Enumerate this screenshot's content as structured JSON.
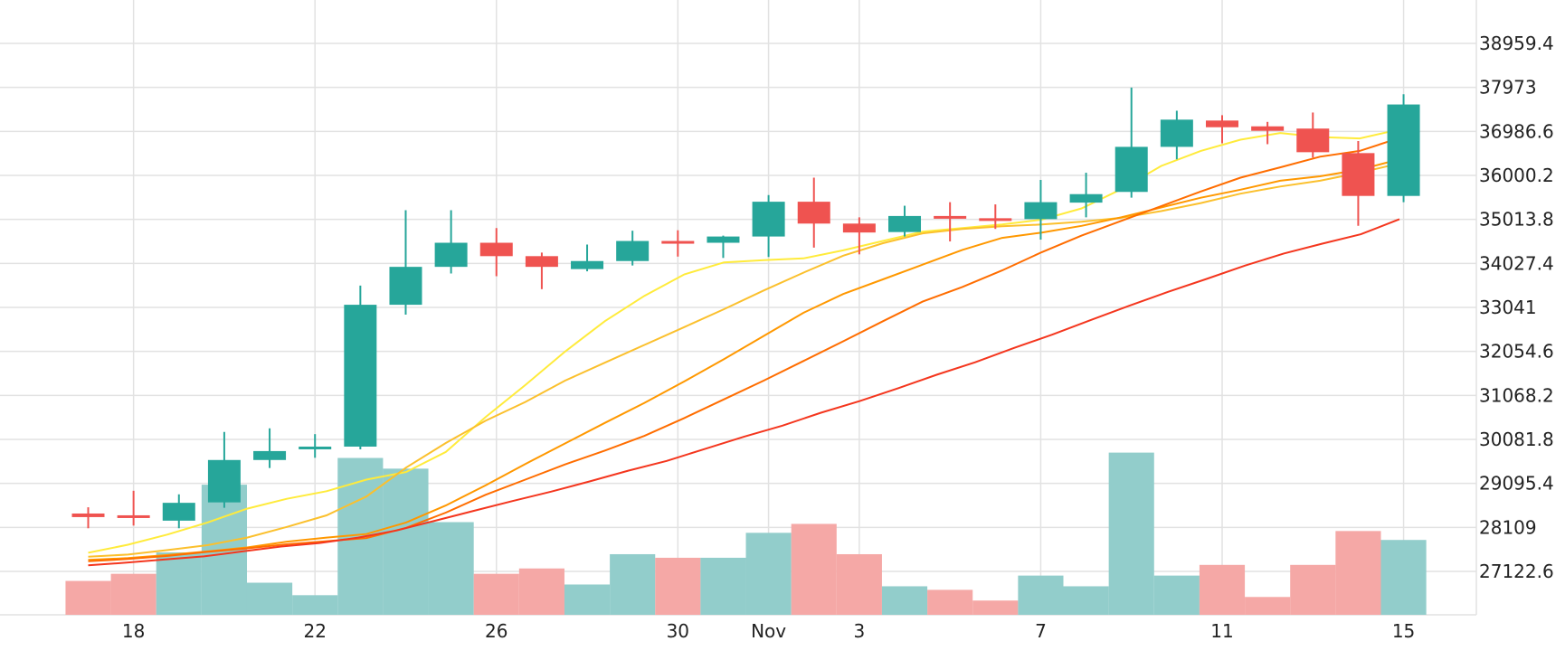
{
  "chart_data": {
    "type": "candlestick",
    "x_labels": [
      "18",
      "22",
      "26",
      "30",
      "Nov",
      "3",
      "7",
      "11",
      "15"
    ],
    "x_label_index": [
      1,
      5,
      9,
      13,
      15,
      17,
      21,
      25,
      29
    ],
    "y_ticks": [
      "38959.4",
      "37973",
      "36986.6",
      "36000.2",
      "35013.8",
      "34027.4",
      "33041",
      "32054.6",
      "31068.2",
      "30081.8",
      "29095.4",
      "28109",
      "27122.6"
    ],
    "ylim": [
      26140,
      39960
    ],
    "grid": true,
    "colors": {
      "up": "#26a69a",
      "down": "#ef5350",
      "volume_up": "#92cdcb",
      "volume_down": "#f5a8a6",
      "grid": "#e2e2e2",
      "ma": [
        "#ffeb3b",
        "#fbc02d",
        "#ff9800",
        "#ff6d00",
        "#f4361e"
      ]
    },
    "candles": [
      {
        "o": 28420,
        "h": 28560,
        "l": 28090,
        "c": 28340
      },
      {
        "o": 28380,
        "h": 28930,
        "l": 28150,
        "c": 28330
      },
      {
        "o": 28260,
        "h": 28850,
        "l": 28090,
        "c": 28660
      },
      {
        "o": 28670,
        "h": 30250,
        "l": 28550,
        "c": 29620
      },
      {
        "o": 29620,
        "h": 30330,
        "l": 29440,
        "c": 29820
      },
      {
        "o": 29860,
        "h": 30200,
        "l": 29670,
        "c": 29920
      },
      {
        "o": 29920,
        "h": 33530,
        "l": 29860,
        "c": 33100
      },
      {
        "o": 33100,
        "h": 35220,
        "l": 32880,
        "c": 33950
      },
      {
        "o": 33950,
        "h": 35220,
        "l": 33800,
        "c": 34490
      },
      {
        "o": 34490,
        "h": 34820,
        "l": 33740,
        "c": 34190
      },
      {
        "o": 34190,
        "h": 34270,
        "l": 33450,
        "c": 33950
      },
      {
        "o": 33900,
        "h": 34450,
        "l": 33850,
        "c": 34080
      },
      {
        "o": 34080,
        "h": 34760,
        "l": 33980,
        "c": 34530
      },
      {
        "o": 34530,
        "h": 34770,
        "l": 34180,
        "c": 34490
      },
      {
        "o": 34490,
        "h": 34650,
        "l": 34150,
        "c": 34630
      },
      {
        "o": 34630,
        "h": 35560,
        "l": 34170,
        "c": 35410
      },
      {
        "o": 35410,
        "h": 35950,
        "l": 34380,
        "c": 34920
      },
      {
        "o": 34920,
        "h": 35060,
        "l": 34230,
        "c": 34720
      },
      {
        "o": 34730,
        "h": 35320,
        "l": 34630,
        "c": 35090
      },
      {
        "o": 35090,
        "h": 35400,
        "l": 34520,
        "c": 35040
      },
      {
        "o": 35040,
        "h": 35350,
        "l": 34800,
        "c": 35020
      },
      {
        "o": 35020,
        "h": 35900,
        "l": 34560,
        "c": 35400
      },
      {
        "o": 35390,
        "h": 36060,
        "l": 35060,
        "c": 35580
      },
      {
        "o": 35630,
        "h": 37970,
        "l": 35500,
        "c": 36640
      },
      {
        "o": 36640,
        "h": 37450,
        "l": 36360,
        "c": 37250
      },
      {
        "o": 37230,
        "h": 37350,
        "l": 36720,
        "c": 37080
      },
      {
        "o": 37100,
        "h": 37200,
        "l": 36700,
        "c": 37000
      },
      {
        "o": 37050,
        "h": 37410,
        "l": 36400,
        "c": 36520
      },
      {
        "o": 36500,
        "h": 36770,
        "l": 34870,
        "c": 35540
      },
      {
        "o": 35540,
        "h": 37820,
        "l": 35400,
        "c": 37590
      }
    ],
    "volume": {
      "max": 10000,
      "values": [
        1900,
        2300,
        3500,
        7300,
        1800,
        1100,
        8800,
        8200,
        5200,
        2300,
        2600,
        1700,
        3400,
        3200,
        3200,
        4600,
        5100,
        3400,
        1600,
        1400,
        800,
        2200,
        1600,
        9100,
        2200,
        2800,
        1000,
        2800,
        4700,
        4200
      ]
    },
    "moving_averages": [
      {
        "values": [
          27540,
          27720,
          27950,
          28220,
          28530,
          28750,
          28920,
          29180,
          29350,
          29800,
          30580,
          31300,
          32050,
          32730,
          33300,
          33780,
          34050,
          34100,
          34140,
          34320,
          34530,
          34740,
          34820,
          34900,
          35010,
          35260,
          35690,
          36210,
          36550,
          36800,
          36950,
          36860,
          36830,
          37030
        ]
      },
      {
        "values": [
          27450,
          27500,
          27600,
          27710,
          27880,
          28120,
          28380,
          28800,
          29450,
          30000,
          30500,
          30920,
          31400,
          31800,
          32200,
          32600,
          33000,
          33420,
          33820,
          34200,
          34480,
          34700,
          34800,
          34860,
          34900,
          34960,
          35050,
          35200,
          35380,
          35590,
          35750,
          35880,
          36060,
          36270
        ]
      },
      {
        "values": [
          27380,
          27420,
          27490,
          27570,
          27660,
          27790,
          27880,
          27960,
          28220,
          28600,
          29050,
          29530,
          29990,
          30450,
          30900,
          31380,
          31880,
          32400,
          32920,
          33340,
          33670,
          34000,
          34330,
          34600,
          34720,
          34870,
          35060,
          35280,
          35500,
          35680,
          35880,
          35980,
          36130,
          36360
        ]
      },
      {
        "values": [
          27350,
          27400,
          27470,
          27560,
          27640,
          27730,
          27800,
          27870,
          28100,
          28440,
          28840,
          29180,
          29520,
          29830,
          30160,
          30560,
          30980,
          31400,
          31840,
          32280,
          32730,
          33170,
          33500,
          33870,
          34280,
          34650,
          34980,
          35310,
          35640,
          35950,
          36180,
          36420,
          36550,
          36840
        ]
      },
      {
        "values": [
          27260,
          27320,
          27390,
          27460,
          27570,
          27680,
          27760,
          27880,
          28040,
          28260,
          28480,
          28700,
          28910,
          29140,
          29380,
          29600,
          29870,
          30140,
          30390,
          30680,
          30940,
          31230,
          31530,
          31810,
          32130,
          32430,
          32760,
          33080,
          33390,
          33680,
          33980,
          34250,
          34470,
          34680,
          35020
        ]
      }
    ]
  }
}
